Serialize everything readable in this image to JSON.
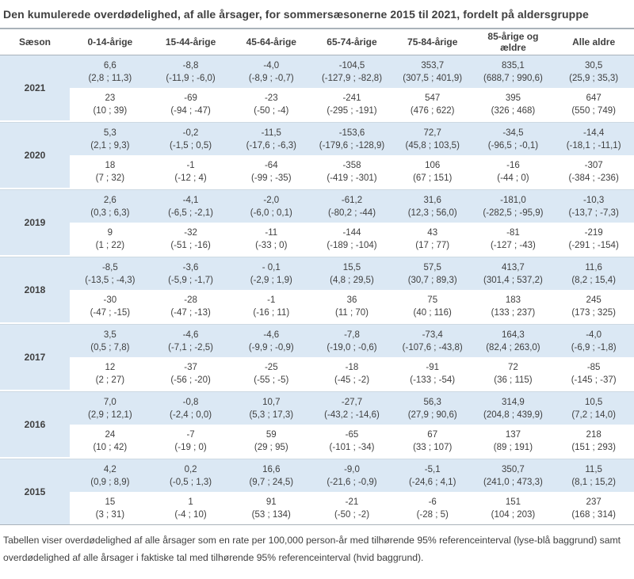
{
  "colors": {
    "row_highlight": "#dbe8f4",
    "text": "#3f3f3f",
    "rule_dark": "#a9b2ba",
    "rule_light": "#cdd9e3"
  },
  "chart_data": {
    "type": "table",
    "title": "Den kumulerede overdødelighed, af alle årsager, for sommersæsonerne 2015 til 2021, fordelt på aldersgruppe",
    "columns": [
      "Sæson",
      "0-14-årige",
      "15-44-årige",
      "45-64-årige",
      "65-74-årige",
      "75-84-årige",
      "85-årige og ældre",
      "Alle aldre"
    ],
    "legend": {
      "rate_rows": "rate per 100,000 person-år med 95% referenceinterval (lyseblå baggrund)",
      "count_rows": "faktiske tal med 95% referenceinterval (hvid baggrund)"
    },
    "rows": [
      {
        "year": "2021",
        "rate": [
          "6,6",
          "-8,8",
          "-4,0",
          "-104,5",
          "353,7",
          "835,1",
          "30,5"
        ],
        "rate_ci": [
          "(2,8 ; 11,3)",
          "(-11,9 ; -6,0)",
          "(-8,9 ; -0,7)",
          "(-127,9 ; -82,8)",
          "(307,5 ; 401,9)",
          "(688,7 ; 990,6)",
          "(25,9 ; 35,3)"
        ],
        "count": [
          "23",
          "-69",
          "-23",
          "-241",
          "547",
          "395",
          "647"
        ],
        "count_ci": [
          "(10 ; 39)",
          "(-94 ; -47)",
          "(-50 ; -4)",
          "(-295 ; -191)",
          "(476 ; 622)",
          "(326 ; 468)",
          "(550 ; 749)"
        ]
      },
      {
        "year": "2020",
        "rate": [
          "5,3",
          "-0,2",
          "-11,5",
          "-153,6",
          "72,7",
          "-34,5",
          "-14,4"
        ],
        "rate_ci": [
          "(2,1 ; 9,3)",
          "(-1,5 ; 0,5)",
          "(-17,6 ; -6,3)",
          "(-179,6 ; -128,9)",
          "(45,8 ; 103,5)",
          "(-96,5 ; -0,1)",
          "(-18,1 ; -11,1)"
        ],
        "count": [
          "18",
          "-1",
          "-64",
          "-358",
          "106",
          "-16",
          "-307"
        ],
        "count_ci": [
          "(7 ; 32)",
          "(-12 ; 4)",
          "(-99 ; -35)",
          "(-419 ; -301)",
          "(67 ; 151)",
          "(-44 ; 0)",
          "(-384 ; -236)"
        ]
      },
      {
        "year": "2019",
        "rate": [
          "2,6",
          "-4,1",
          "-2,0",
          "-61,2",
          "31,6",
          "-181,0",
          "-10,3"
        ],
        "rate_ci": [
          "(0,3 ; 6,3)",
          "(-6,5 ; -2,1)",
          "(-6,0 ; 0,1)",
          "(-80,2 ; -44)",
          "(12,3 ; 56,0)",
          "(-282,5 ; -95,9)",
          "(-13,7 ; -7,3)"
        ],
        "count": [
          "9",
          "-32",
          "-11",
          "-144",
          "43",
          "-81",
          "-219"
        ],
        "count_ci": [
          "(1 ; 22)",
          "(-51 ; -16)",
          "(-33 ; 0)",
          "(-189 ; -104)",
          "(17 ; 77)",
          "(-127 ; -43)",
          "(-291 ; -154)"
        ]
      },
      {
        "year": "2018",
        "rate": [
          "-8,5",
          "-3,6",
          "- 0,1",
          "15,5",
          "57,5",
          "413,7",
          "11,6"
        ],
        "rate_ci": [
          "(-13,5 ; -4,3)",
          "(-5,9 ; -1,7)",
          "(-2,9 ; 1,9)",
          "(4,8 ; 29,5)",
          "(30,7 ; 89,3)",
          "(301,4 ; 537,2)",
          "(8,2 ; 15,4)"
        ],
        "count": [
          "-30",
          "-28",
          "-1",
          "36",
          "75",
          "183",
          "245"
        ],
        "count_ci": [
          "(-47 ; -15)",
          "(-47 ; -13)",
          "(-16 ; 11)",
          "(11 ; 70)",
          "(40 ; 116)",
          "(133 ; 237)",
          "(173 ; 325)"
        ]
      },
      {
        "year": "2017",
        "rate": [
          "3,5",
          "-4,6",
          "-4,6",
          "-7,8",
          "-73,4",
          "164,3",
          "-4,0"
        ],
        "rate_ci": [
          "(0,5 ; 7,8)",
          "(-7,1 ; -2,5)",
          "(-9,9 ; -0,9)",
          "(-19,0 ; -0,6)",
          "(-107,6 ; -43,8)",
          "(82,4 ; 263,0)",
          "(-6,9 ; -1,8)"
        ],
        "count": [
          "12",
          "-37",
          "-25",
          "-18",
          "-91",
          "72",
          "-85"
        ],
        "count_ci": [
          "(2 ; 27)",
          "(-56 ; -20)",
          "(-55 ; -5)",
          "(-45 ; -2)",
          "(-133 ; -54)",
          "(36 ; 115)",
          "(-145 ; -37)"
        ]
      },
      {
        "year": "2016",
        "rate": [
          "7,0",
          "-0,8",
          "10,7",
          "-27,7",
          "56,3",
          "314,9",
          "10,5"
        ],
        "rate_ci": [
          "(2,9 ; 12,1)",
          "(-2,4 ; 0,0)",
          "(5,3 ; 17,3)",
          "(-43,2 ; -14,6)",
          "(27,9 ; 90,6)",
          "(204,8 ; 439,9)",
          "(7,2 ; 14,0)"
        ],
        "count": [
          "24",
          "-7",
          "59",
          "-65",
          "67",
          "137",
          "218"
        ],
        "count_ci": [
          "(10 ; 42)",
          "(-19 ; 0)",
          "(29 ; 95)",
          "(-101 ; -34)",
          "(33 ; 107)",
          "(89 ; 191)",
          "(151 ; 293)"
        ]
      },
      {
        "year": "2015",
        "rate": [
          "4,2",
          "0,2",
          "16,6",
          "-9,0",
          "-5,1",
          "350,7",
          "11,5"
        ],
        "rate_ci": [
          "(0,9 ; 8,9)",
          "(-0,5 ; 1,3)",
          "(9,7 ; 24,5)",
          "(-21,6 ; -0,9)",
          "(-24,6 ; 4,1)",
          "(241,0 ; 473,3)",
          "(8,1 ; 15,2)"
        ],
        "count": [
          "15",
          "1",
          "91",
          "-21",
          "-6",
          "151",
          "237"
        ],
        "count_ci": [
          "(3 ; 31)",
          "(-4 ; 10)",
          "(53 ; 134)",
          "(-50 ; -2)",
          "(-28 ; 5)",
          "(104 ; 203)",
          "(168 ; 314)"
        ]
      }
    ],
    "footnote": "Tabellen viser overdødelighed af alle årsager som en rate per 100,000 person-år med tilhørende 95% referenceinterval (lyse-blå baggrund) samt overdødelighed af alle årsager i faktiske tal med tilhørende 95% referenceinterval (hvid baggrund)."
  }
}
